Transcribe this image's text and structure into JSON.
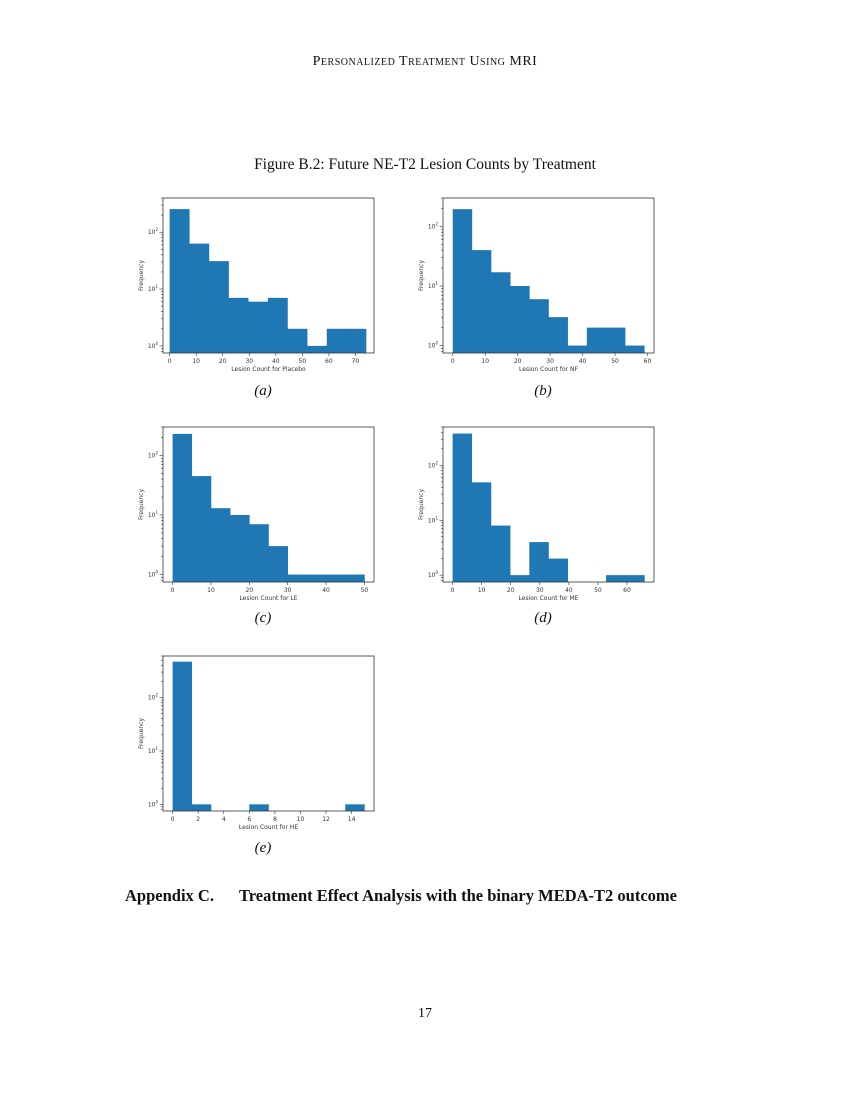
{
  "running_head": "Personalized Treatment Using MRI",
  "figure": {
    "title": "Figure B.2: Future NE-T2 Lesion Counts by Treatment",
    "panels": [
      {
        "label": "(a)",
        "xlabel": "Lesion Count for Placebo"
      },
      {
        "label": "(b)",
        "xlabel": "Lesion Count for NF"
      },
      {
        "label": "(c)",
        "xlabel": "Lesion Count for LE"
      },
      {
        "label": "(d)",
        "xlabel": "Lesion Count for ME"
      },
      {
        "label": "(e)",
        "xlabel": "Lesion Count for HE"
      }
    ]
  },
  "appendix": {
    "number": "Appendix C.",
    "title": "Treatment Effect Analysis with the binary MEDA-T2 outcome"
  },
  "page_number": "17",
  "colors": {
    "bar": "#1f77b4",
    "frame": "#333333"
  },
  "chart_data": [
    {
      "type": "bar",
      "subtitle": "(a)",
      "title": "",
      "xlabel": "Lesion Count for Placebo",
      "ylabel": "Frequency",
      "yscale": "log",
      "ytick_labels": [
        "10^0",
        "10^1",
        "10^2"
      ],
      "xticks": [
        0,
        10,
        20,
        30,
        40,
        50,
        60,
        70
      ],
      "xlim": [
        -2.5,
        77
      ],
      "ylim": [
        0.75,
        400
      ],
      "bin_edges": [
        0,
        7.4,
        14.8,
        22.2,
        29.6,
        37,
        44.4,
        51.8,
        59.2,
        66.6,
        74
      ],
      "values": [
        255,
        63,
        31,
        7,
        6,
        7,
        2,
        1,
        2,
        2
      ],
      "grid": false,
      "legend": null
    },
    {
      "type": "bar",
      "subtitle": "(b)",
      "title": "",
      "xlabel": "Lesion Count for NF",
      "ylabel": "Frequency",
      "yscale": "log",
      "ytick_labels": [
        "10^0",
        "10^1",
        "10^2"
      ],
      "xticks": [
        0,
        10,
        20,
        30,
        40,
        50,
        60
      ],
      "xlim": [
        -3,
        62
      ],
      "ylim": [
        0.75,
        300
      ],
      "bin_edges": [
        0,
        5.9,
        11.8,
        17.7,
        23.6,
        29.5,
        35.4,
        41.3,
        47.2,
        53.1,
        59
      ],
      "values": [
        195,
        40,
        17,
        10,
        6,
        3,
        1,
        2,
        2,
        1
      ],
      "grid": false,
      "legend": null
    },
    {
      "type": "bar",
      "subtitle": "(c)",
      "title": "",
      "xlabel": "Lesion Count for LE",
      "ylabel": "Frequency",
      "yscale": "log",
      "ytick_labels": [
        "10^0",
        "10^1",
        "10^2"
      ],
      "xticks": [
        0,
        10,
        20,
        30,
        40,
        50
      ],
      "xlim": [
        -2.5,
        52.5
      ],
      "ylim": [
        0.75,
        300
      ],
      "bin_edges": [
        0,
        5,
        10,
        15,
        20,
        25,
        30,
        35,
        40,
        45,
        50
      ],
      "values": [
        230,
        45,
        13,
        10,
        7,
        3,
        1,
        1,
        1,
        1
      ],
      "grid": false,
      "legend": null
    },
    {
      "type": "bar",
      "subtitle": "(d)",
      "title": "",
      "xlabel": "Lesion Count for ME",
      "ylabel": "Frequency",
      "yscale": "log",
      "ytick_labels": [
        "10^0",
        "10^1",
        "10^2"
      ],
      "xticks": [
        0,
        10,
        20,
        30,
        40,
        50,
        60
      ],
      "xlim": [
        -3.3,
        69.3
      ],
      "ylim": [
        0.75,
        500
      ],
      "bin_edges": [
        0,
        6.6,
        13.2,
        19.8,
        26.4,
        33,
        39.6,
        46.2,
        52.8,
        59.4,
        66
      ],
      "values": [
        380,
        49,
        8,
        1,
        4,
        2,
        0,
        0,
        1,
        1
      ],
      "grid": false,
      "legend": null
    },
    {
      "type": "bar",
      "subtitle": "(e)",
      "title": "",
      "xlabel": "Lesion Count for HE",
      "ylabel": "Frequency",
      "yscale": "log",
      "ytick_labels": [
        "10^0",
        "10^1",
        "10^2"
      ],
      "xticks": [
        0,
        2,
        4,
        6,
        8,
        10,
        12,
        14
      ],
      "xlim": [
        -0.75,
        15.75
      ],
      "ylim": [
        0.75,
        600
      ],
      "bin_edges": [
        0,
        1.5,
        3,
        4.5,
        6,
        7.5,
        9,
        10.5,
        12,
        13.5,
        15
      ],
      "values": [
        470,
        1,
        0,
        0,
        1,
        0,
        0,
        0,
        0,
        1
      ],
      "grid": false,
      "legend": null
    }
  ]
}
